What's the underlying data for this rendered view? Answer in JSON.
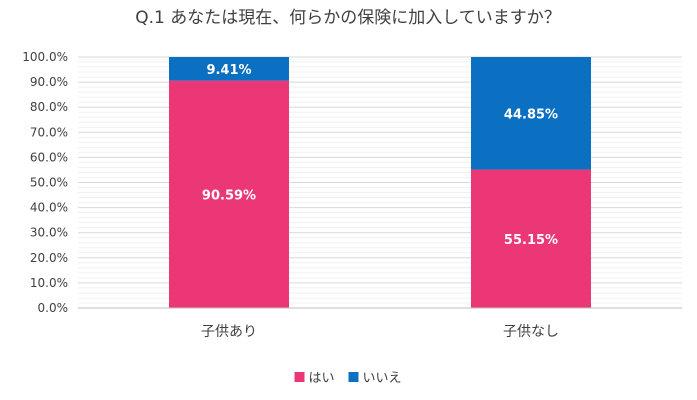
{
  "chart_data": {
    "type": "bar",
    "stacked": true,
    "title": "Q.1 あなたは現在、何らかの保険に加入していますか？",
    "categories": [
      "子供あり",
      "子供なし"
    ],
    "series": [
      {
        "name": "はい",
        "values": [
          90.59,
          55.15
        ],
        "labels": [
          "90.59%",
          "55.15%"
        ],
        "color": "#ec3776"
      },
      {
        "name": "いいえ",
        "values": [
          9.41,
          44.85
        ],
        "labels": [
          "9.41%",
          "44.85%"
        ],
        "color": "#0b70c2"
      }
    ],
    "ylim": [
      0,
      100
    ],
    "yticks": [
      0,
      10,
      20,
      30,
      40,
      50,
      60,
      70,
      80,
      90,
      100
    ],
    "ytick_labels": [
      "0.0%",
      "10.0%",
      "20.0%",
      "30.0%",
      "40.0%",
      "50.0%",
      "60.0%",
      "70.0%",
      "80.0%",
      "90.0%",
      "100.0%"
    ],
    "grid": true,
    "legend_position": "bottom"
  }
}
